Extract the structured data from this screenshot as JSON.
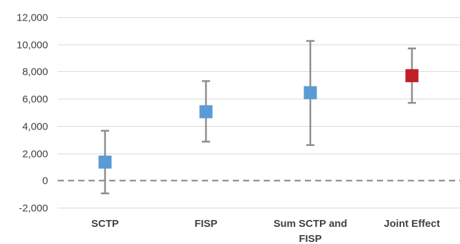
{
  "chart_data": {
    "type": "scatter",
    "subtype": "point-estimate-with-error-bars",
    "title": "",
    "xlabel": "",
    "ylabel": "",
    "ylim": [
      -2000,
      12000
    ],
    "y_ticks": [
      -2000,
      0,
      2000,
      4000,
      6000,
      8000,
      10000,
      12000
    ],
    "y_tick_labels": [
      "-2,000",
      "0",
      "2,000",
      "4,000",
      "6,000",
      "8,000",
      "10,000",
      "12,000"
    ],
    "grid": true,
    "zero_reference_line": "dashed",
    "categories": [
      {
        "label_lines": [
          "SCTP"
        ],
        "value": 1350,
        "lower": -950,
        "upper": 3650,
        "color": "#5b9bd5"
      },
      {
        "label_lines": [
          "FISP"
        ],
        "value": 5050,
        "lower": 2850,
        "upper": 7300,
        "color": "#5b9bd5"
      },
      {
        "label_lines": [
          "Sum SCTP and",
          "FISP"
        ],
        "value": 6450,
        "lower": 2600,
        "upper": 10250,
        "color": "#5b9bd5"
      },
      {
        "label_lines": [
          "Joint Effect"
        ],
        "value": 7700,
        "lower": 5700,
        "upper": 9700,
        "color": "#c0202a"
      }
    ],
    "colors": {
      "grid": "#d9d9d9",
      "error_bar": "#8c8c8c",
      "zero_line": "#7f7f7f"
    }
  }
}
